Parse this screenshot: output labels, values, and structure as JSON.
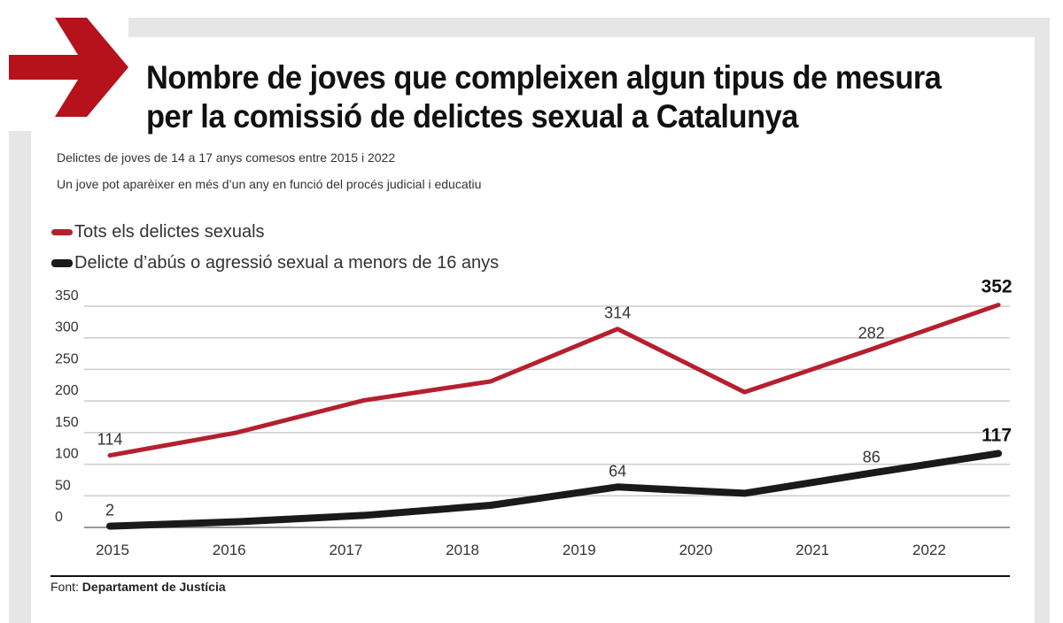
{
  "title_line1": "Nombre de joves que compleixen algun tipus de mesura",
  "title_line2": "per la comissió de delictes sexual a Catalunya",
  "subtitle1": "Delictes de joves de 14 a 17 anys comesos entre 2015 i 2022",
  "subtitle2": "Un jove pot aparèixer en més d’un any en funció del procés judicial i educatiu",
  "source_label": "Font:",
  "source_value": "Departament de Justícia",
  "colors": {
    "accent": "#b5121b",
    "red_series": "#b5202e",
    "black_series": "#1a1a1a",
    "frame": "#e6e6e6"
  },
  "chart_data": {
    "type": "line",
    "categories": [
      "2015",
      "2016",
      "2017",
      "2018",
      "2019",
      "2020",
      "2021",
      "2022"
    ],
    "ylim": [
      0,
      350
    ],
    "yticks": [
      0,
      50,
      100,
      150,
      200,
      250,
      300,
      350
    ],
    "grid": true,
    "legend_placement": "top-left",
    "series": [
      {
        "name": "Tots els delictes sexuals",
        "color": "#b5202e",
        "values": [
          114,
          150,
          201,
          231,
          314,
          214,
          282,
          352
        ],
        "labels": {
          "0": "114",
          "4": "314",
          "6": "282",
          "7": "352"
        }
      },
      {
        "name": "Delicte d’abús o agressió sexual a menors de 16 anys",
        "color": "#1a1a1a",
        "values": [
          2,
          9,
          19,
          35,
          64,
          54,
          86,
          117
        ],
        "labels": {
          "0": "2",
          "4": "64",
          "6": "86",
          "7": "117"
        }
      }
    ]
  }
}
